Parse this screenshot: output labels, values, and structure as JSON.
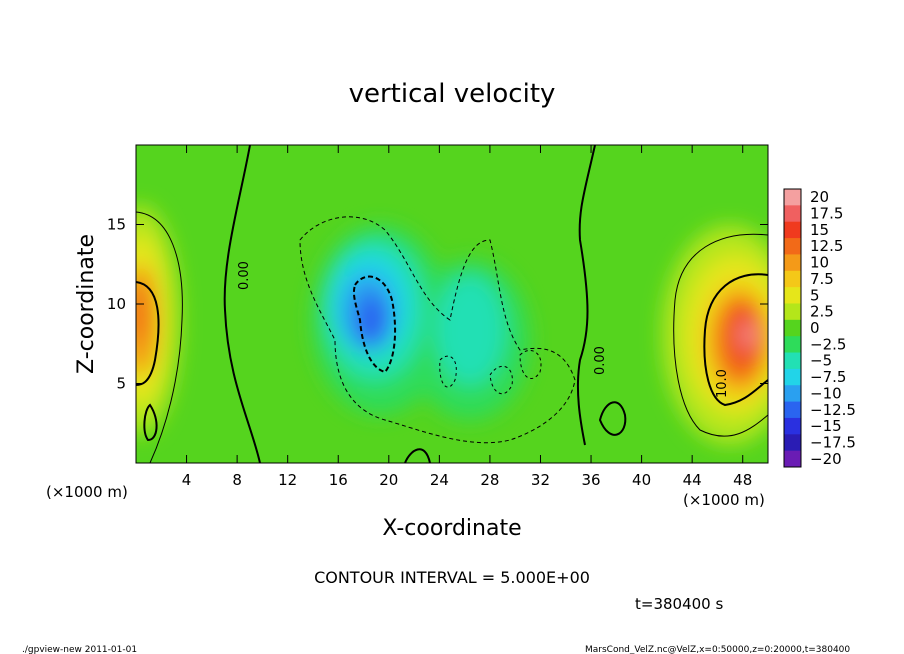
{
  "chart_data": {
    "type": "heatmap",
    "title": "vertical velocity",
    "xlabel": "X-coordinate",
    "ylabel": "Z-coordinate",
    "x_unit_left": "(×1000 m)",
    "x_unit_right": "(×1000 m)",
    "xlim": [
      0,
      50
    ],
    "ylim": [
      0,
      20
    ],
    "x_ticks": [
      4,
      8,
      12,
      16,
      20,
      24,
      28,
      32,
      36,
      40,
      44,
      48
    ],
    "y_ticks": [
      5,
      10,
      15
    ],
    "colorbar": {
      "labels": [
        "20",
        "17.5",
        "15",
        "12.5",
        "10",
        "7.5",
        "5",
        "2.5",
        "0",
        "−2.5",
        "−5",
        "−7.5",
        "−10",
        "−12.5",
        "−15",
        "−17.5",
        "−20"
      ],
      "values": [
        20,
        17.5,
        15,
        12.5,
        10,
        7.5,
        5,
        2.5,
        0,
        -2.5,
        -5,
        -7.5,
        -10,
        -12.5,
        -15,
        -17.5,
        -20
      ],
      "colors": [
        "#f4a0a0",
        "#f06060",
        "#f03a1e",
        "#f26a18",
        "#f49a18",
        "#f4c818",
        "#e6e61a",
        "#b4e61a",
        "#55d41e",
        "#2edc5a",
        "#22e0b4",
        "#22d4e8",
        "#2aa0f0",
        "#2a64f0",
        "#2a30e0",
        "#2a1cb4",
        "#6a1cb4"
      ]
    },
    "contour_labels": [
      "0.00",
      "0.00",
      "10.0"
    ],
    "contour_interval": "CONTOUR INTERVAL = 5.000E+00",
    "time": "t=380400 s",
    "footer_left": "./gpview-new  2011-01-01",
    "footer_right": "MarsCond_VelZ.nc@VelZ,x=0:50000,z=0:20000,t=380400"
  }
}
